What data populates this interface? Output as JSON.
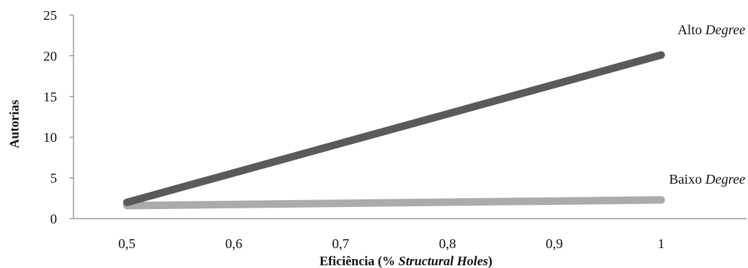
{
  "chart_data": {
    "type": "line",
    "title": "",
    "xlabel": {
      "prefix": "Eficiência (% ",
      "emphasis": "Structural Holes",
      "suffix": ")"
    },
    "ylabel": "Autorias",
    "xlim": [
      0.45,
      1.08
    ],
    "ylim": [
      0,
      25
    ],
    "x_ticks": [
      0.5,
      0.6,
      0.7,
      0.8,
      0.9,
      1
    ],
    "x_tick_labels": [
      "0,5",
      "0,6",
      "0,7",
      "0,8",
      "0,9",
      "1"
    ],
    "y_ticks": [
      0,
      5,
      10,
      15,
      20,
      25
    ],
    "y_tick_labels": [
      "0",
      "5",
      "10",
      "15",
      "20",
      "25"
    ],
    "grid": false,
    "legend": "none",
    "series": [
      {
        "name": "Alto Degree",
        "label_plain": "Alto ",
        "label_italic": "Degree",
        "color": "#5a5a5a",
        "x": [
          0.5,
          1
        ],
        "y": [
          2.0,
          20.1
        ]
      },
      {
        "name": "Baixo Degree",
        "label_plain": "Baixo ",
        "label_italic": "Degree",
        "color": "#ababab",
        "x": [
          0.5,
          1
        ],
        "y": [
          1.6,
          2.3
        ]
      }
    ]
  }
}
